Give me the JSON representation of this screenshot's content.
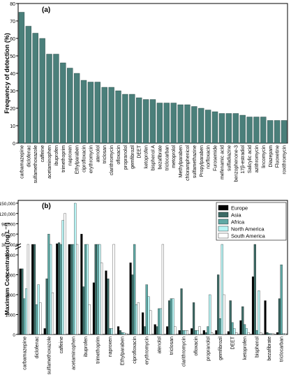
{
  "chart_data": [
    {
      "panel": "(a)",
      "type": "bar",
      "ylabel": "Frequency of detection (%)",
      "ylim": [
        0,
        80
      ],
      "yticks": [
        0,
        10,
        20,
        30,
        40,
        50,
        60,
        70,
        80
      ],
      "bar_color": "#4a7f7a",
      "categories": [
        "carbamazepine",
        "diclofenac",
        "sulfamethoxazole",
        "caffeine",
        "acetaminophen",
        "ibuprofen",
        "trimethoprim",
        "naproxen",
        "Ethylparaben",
        "ciprofloxacin",
        "erythromycin",
        "atenolol",
        "triclosan",
        "clarithromycin",
        "ofloxacin",
        "propranolol",
        "gemfibrozil",
        "DEET",
        "ketoprofen",
        "bisphenol A",
        "bezafibrate",
        "triclocarban",
        "metoprolol",
        "Methylparaben",
        "chloramphenicol",
        "sulfamethazine",
        "Propylparaben",
        "norfloxacin",
        "Furosemide",
        "mefenamic acid",
        "sulfadiazine",
        "benzophenone-3",
        "17β-estradiol",
        "Salicylic acid",
        "azithromycin",
        "lincomycin",
        "Diazepam",
        "Fluoxetine",
        "roxithromycin"
      ],
      "values": [
        75,
        67,
        63,
        60,
        51,
        51,
        46,
        43,
        40,
        36,
        35,
        35,
        32,
        32,
        30,
        28,
        28,
        26,
        25,
        25,
        23,
        23,
        23,
        22,
        22,
        21,
        20,
        19,
        18,
        17,
        17,
        17,
        16,
        15,
        15,
        15,
        13,
        13,
        13
      ]
    },
    {
      "panel": "(b)",
      "type": "bar",
      "ylabel": "Maximum Concentration (ng L⁻¹)",
      "yticks_lower": [
        "0",
        "1000",
        "2000",
        "3000",
        "4000"
      ],
      "yticks_upper": [
        "30,000",
        "60,000",
        "90,000",
        "120,000",
        "150,000"
      ],
      "legend_position": "top-right",
      "series": [
        {
          "name": "Europe",
          "color": "#000000"
        },
        {
          "name": "Asia",
          "color": "#3d6b66"
        },
        {
          "name": "Africa",
          "color": "#5fa9a5"
        },
        {
          "name": "North America",
          "color": "#b8f5f5"
        },
        {
          "name": "South America",
          "color": "#ffffff"
        }
      ],
      "categories": [
        "carbamazepine",
        "diclofenac",
        "sulfamethoxazole",
        "caffeine",
        "acetaminophen",
        "ibuprofen",
        "trimethoprim",
        "naproxen",
        "Ethylparaben",
        "ciprofloxacin",
        "erythromycin",
        "atenolol",
        "triclosan",
        "clarithromycin",
        "ofloxacin",
        "propranolol",
        "gemfibrozil",
        "DEET",
        "ketoprofen",
        "bisphenol",
        "bezafibrate",
        "triclocarban"
      ],
      "values": [
        [
          3300,
          3300,
          1800,
          2300,
          20000
        ],
        [
          7000,
          5000,
          1500,
          2500,
          1600
        ],
        [
          300,
          2800,
          60000,
          8000,
          2100
        ],
        [
          32000,
          35000,
          30000,
          100000,
          120000
        ],
        [
          18000,
          18000,
          9000,
          150000,
          20000
        ],
        [
          60000,
          2400,
          5500,
          25000,
          1500
        ],
        [
          2600,
          22000,
          22000,
          22000,
          3600
        ],
        [
          3200,
          2800,
          300,
          300,
          20000
        ],
        [
          400,
          200,
          100,
          80,
          50
        ],
        [
          3600,
          3000,
          22000,
          1500,
          1600
        ],
        [
          1100,
          400,
          2500,
          1900,
          1200
        ],
        [
          500,
          400,
          1300,
          1300,
          20000
        ],
        [
          400,
          1700,
          1800,
          1800,
          400
        ],
        [
          200,
          2300,
          200,
          200,
          200
        ],
        [
          300,
          1600,
          200,
          200,
          400
        ],
        [
          200,
          100,
          400,
          2000,
          100
        ],
        [
          200,
          3000,
          800,
          20000,
          2000
        ],
        [
          150,
          1700,
          600,
          300,
          100
        ],
        [
          700,
          1400,
          500,
          300,
          100
        ],
        [
          2900,
          4700,
          200,
          2200,
          100
        ],
        [
          1700,
          100,
          50,
          50,
          50
        ],
        [
          100,
          1800,
          3500,
          50,
          50
        ]
      ]
    }
  ]
}
